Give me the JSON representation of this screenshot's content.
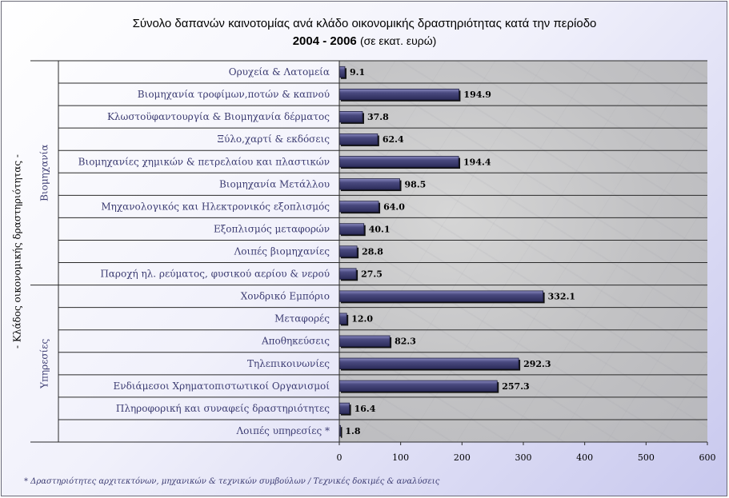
{
  "title": {
    "line1": "Σύνολο δαπανών καινοτομίας ανά κλάδο οικονομικής δραστηριότητας κατά την περίοδο",
    "line2_bold": "2004 - 2006",
    "line2_unit": "(σε εκατ. ευρώ)"
  },
  "footnote": "* Δραστηριότητες αρχιτεκτόνων, μηχανικών & τεχνικών συμβούλων / Τεχνικές δοκιμές & αναλύσεις",
  "colors": {
    "bar_fill": "#4a4a80",
    "bar_highlight": "#8a8ac0",
    "label_text": "#3c3c72",
    "value_text": "#000000"
  },
  "chart_data": {
    "type": "bar",
    "orientation": "horizontal",
    "ylabel": "- Κλάδος οικονομικής δραστηριότητας -",
    "groups": [
      {
        "name": "Βιομηχανία",
        "count": 10
      },
      {
        "name": "Υπηρεσίες",
        "count": 7
      }
    ],
    "categories": [
      "Ορυχεία & Λατομεία",
      "Βιομηχανία τροφίμων,ποτών & καπνού",
      "Κλωστοϋφαντουργία & Βιομηχανία δέρματος",
      "Ξύλο,χαρτί & εκδόσεις",
      "Βιομηχανίες χημικών & πετρελαίου και πλαστικών",
      "Βιομηχανία Μετάλλου",
      "Μηχανολογικός και Ηλεκτρονικός εξοπλισμός",
      "Εξοπλισμός μεταφορών",
      "Λοιπές βιομηχανίες",
      "Παροχή ηλ. ρεύματος, φυσικού αερίου & νερού",
      "Χονδρικό Εμπόριο",
      "Μεταφορές",
      "Αποθηκεύσεις",
      "Τηλεπικοινωνίες",
      "Ενδιάμεσοι Χρηματοπιστωτικοί Οργανισμοί",
      "Πληροφορική και συναφείς δραστηριότητες",
      "Λοιπές υπηρεσίες *"
    ],
    "values": [
      9.1,
      194.9,
      37.8,
      62.4,
      194.4,
      98.5,
      64.0,
      40.1,
      28.8,
      27.5,
      332.1,
      12.0,
      82.3,
      292.3,
      257.3,
      16.4,
      1.8
    ],
    "value_labels": [
      "9.1",
      "194.9",
      "37.8",
      "62.4",
      "194.4",
      "98.5",
      "64.0",
      "40.1",
      "28.8",
      "27.5",
      "332.1",
      "12.0",
      "82.3",
      "292.3",
      "257.3",
      "16.4",
      "1.8"
    ],
    "xlim": [
      0,
      600
    ],
    "xticks": [
      0,
      100,
      200,
      300,
      400,
      500,
      600
    ],
    "xtick_labels": [
      "0",
      "100",
      "200",
      "300",
      "400",
      "500",
      "600"
    ],
    "grid": "horizontal category separators",
    "legend": "none"
  }
}
